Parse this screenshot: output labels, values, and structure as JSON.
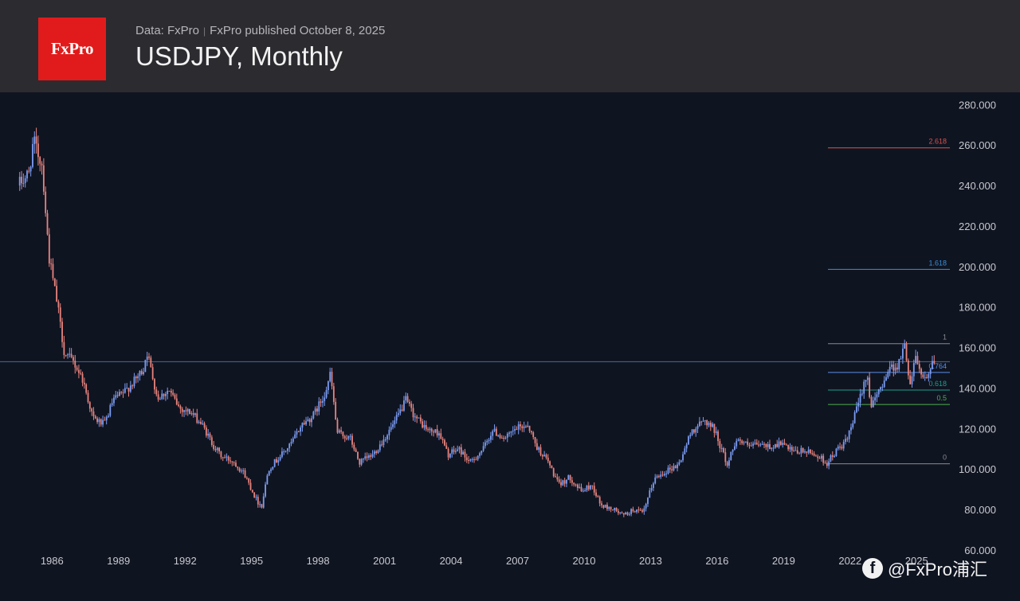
{
  "header": {
    "logo_text": "FxPro",
    "data_source": "Data: FxPro",
    "published": "FxPro published October 8, 2025",
    "title": "USDJPY, Monthly"
  },
  "watermark": {
    "icon": "facebook-icon",
    "text": "@FxPro浦汇"
  },
  "colors": {
    "up": "#7b9cf2",
    "down": "#e8847d",
    "background": "#0f1421",
    "header": "#2b2b30",
    "brand": "#e11b1b"
  },
  "chart_data": {
    "type": "candlestick",
    "title": "USDJPY, Monthly",
    "xlabel": "",
    "ylabel": "",
    "x_ticks": [
      "1986",
      "1989",
      "1992",
      "1995",
      "1998",
      "2001",
      "2004",
      "2007",
      "2010",
      "2013",
      "2016",
      "2019",
      "2022",
      "2025"
    ],
    "y_ticks": [
      "60.000",
      "80.000",
      "100.000",
      "120.000",
      "140.000",
      "160.000",
      "180.000",
      "200.000",
      "220.000",
      "240.000",
      "260.000",
      "280.000"
    ],
    "ylim": [
      60,
      286
    ],
    "xlim": [
      1984.3,
      2026.5
    ],
    "grid": false,
    "horizontal_line": {
      "value": 153
    },
    "fibonacci": [
      {
        "label": "2.618",
        "value": 258.6,
        "color": "#d9534f"
      },
      {
        "label": "1.618",
        "value": 198.6,
        "color": "#3d8fd6"
      },
      {
        "label": "1",
        "value": 161.9,
        "color": "#8a8a90"
      },
      {
        "label": "0.764",
        "value": 147.7,
        "color": "#5b8ee6"
      },
      {
        "label": "0.618",
        "value": 139.0,
        "color": "#1e9e8a"
      },
      {
        "label": "0.5",
        "value": 131.9,
        "color": "#4caf50"
      },
      {
        "label": "0",
        "value": 102.6,
        "color": "#8a8a90"
      }
    ],
    "price_path": [
      [
        1984.5,
        240
      ],
      [
        1985.0,
        246
      ],
      [
        1985.2,
        262
      ],
      [
        1985.6,
        250
      ],
      [
        1985.9,
        205
      ],
      [
        1986.3,
        180
      ],
      [
        1986.6,
        157
      ],
      [
        1987.0,
        153
      ],
      [
        1987.4,
        145
      ],
      [
        1987.9,
        125
      ],
      [
        1988.4,
        122
      ],
      [
        1988.8,
        134
      ],
      [
        1989.3,
        138
      ],
      [
        1989.8,
        144
      ],
      [
        1990.2,
        150
      ],
      [
        1990.3,
        159
      ],
      [
        1990.8,
        135
      ],
      [
        1991.3,
        139
      ],
      [
        1991.8,
        130
      ],
      [
        1992.3,
        128
      ],
      [
        1992.8,
        122
      ],
      [
        1993.3,
        112
      ],
      [
        1993.7,
        106
      ],
      [
        1994.2,
        104
      ],
      [
        1994.7,
        98
      ],
      [
        1995.3,
        84
      ],
      [
        1995.5,
        82
      ],
      [
        1995.8,
        100
      ],
      [
        1996.3,
        106
      ],
      [
        1996.8,
        112
      ],
      [
        1997.3,
        122
      ],
      [
        1997.8,
        126
      ],
      [
        1998.3,
        136
      ],
      [
        1998.6,
        147
      ],
      [
        1998.9,
        118
      ],
      [
        1999.5,
        115
      ],
      [
        1999.9,
        103
      ],
      [
        2000.5,
        107
      ],
      [
        2000.9,
        113
      ],
      [
        2001.5,
        123
      ],
      [
        2002.0,
        134
      ],
      [
        2002.4,
        126
      ],
      [
        2003.0,
        119
      ],
      [
        2003.5,
        118
      ],
      [
        2003.9,
        107
      ],
      [
        2004.4,
        110
      ],
      [
        2004.9,
        103
      ],
      [
        2005.5,
        110
      ],
      [
        2005.9,
        119
      ],
      [
        2006.5,
        115
      ],
      [
        2007.0,
        120
      ],
      [
        2007.5,
        122
      ],
      [
        2007.9,
        111
      ],
      [
        2008.4,
        104
      ],
      [
        2008.9,
        92
      ],
      [
        2009.4,
        96
      ],
      [
        2009.9,
        89
      ],
      [
        2010.4,
        92
      ],
      [
        2010.8,
        82
      ],
      [
        2011.4,
        80
      ],
      [
        2011.8,
        77
      ],
      [
        2012.3,
        80
      ],
      [
        2012.7,
        78
      ],
      [
        2013.2,
        95
      ],
      [
        2013.7,
        99
      ],
      [
        2014.3,
        102
      ],
      [
        2014.9,
        119
      ],
      [
        2015.5,
        124
      ],
      [
        2015.9,
        120
      ],
      [
        2016.5,
        102
      ],
      [
        2016.9,
        115
      ],
      [
        2017.5,
        111
      ],
      [
        2017.9,
        112
      ],
      [
        2018.5,
        111
      ],
      [
        2018.9,
        113
      ],
      [
        2019.5,
        108
      ],
      [
        2019.9,
        109
      ],
      [
        2020.5,
        107
      ],
      [
        2021.0,
        103
      ],
      [
        2021.5,
        110
      ],
      [
        2021.9,
        114
      ],
      [
        2022.3,
        128
      ],
      [
        2022.8,
        148
      ],
      [
        2023.0,
        130
      ],
      [
        2023.4,
        140
      ],
      [
        2023.8,
        150
      ],
      [
        2024.2,
        151
      ],
      [
        2024.5,
        161
      ],
      [
        2024.75,
        142
      ],
      [
        2025.0,
        157
      ],
      [
        2025.3,
        145
      ],
      [
        2025.6,
        147
      ],
      [
        2025.75,
        152
      ]
    ]
  }
}
